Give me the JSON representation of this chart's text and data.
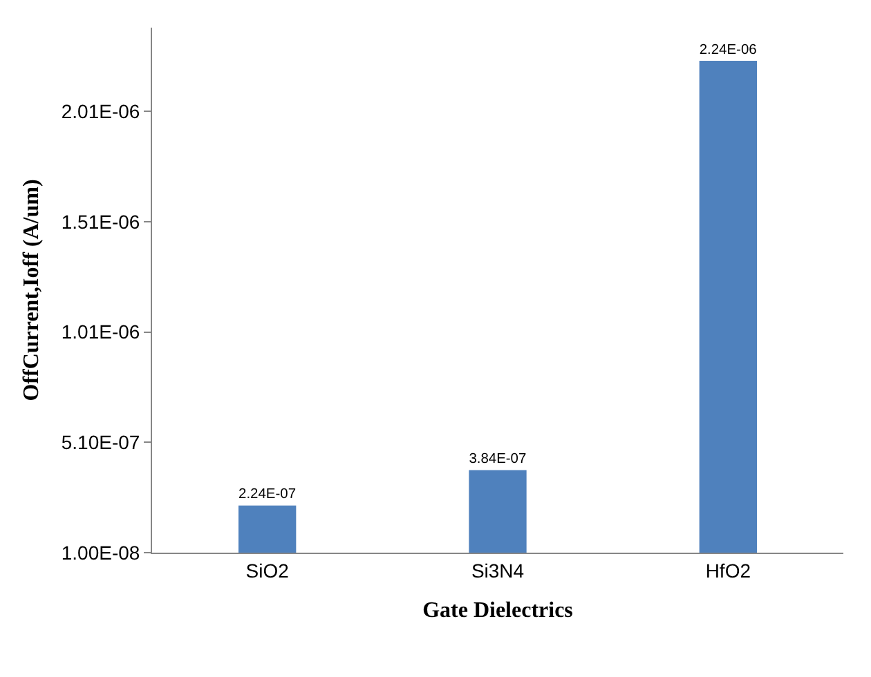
{
  "chart_data": {
    "type": "bar",
    "xlabel": "Gate Dielectrics",
    "ylabel": "OffCurrent,Ioff (A/um)",
    "categories": [
      "SiO2",
      "Si3N4",
      "HfO2"
    ],
    "values": [
      2.24e-07,
      3.84e-07,
      2.24e-06
    ],
    "value_labels": [
      "2.24E-07",
      "3.84E-07",
      "2.24E-06"
    ],
    "color": "#4f81bd",
    "ylim": [
      1e-08,
      2.39e-06
    ],
    "yticks": [
      {
        "value": 1e-08,
        "label": "1.00E-08"
      },
      {
        "value": 5.1e-07,
        "label": "5.10E-07"
      },
      {
        "value": 1.01e-06,
        "label": "1.01E-06"
      },
      {
        "value": 1.51e-06,
        "label": "1.51E-06"
      },
      {
        "value": 2.01e-06,
        "label": "2.01E-06"
      }
    ],
    "grid": false
  }
}
